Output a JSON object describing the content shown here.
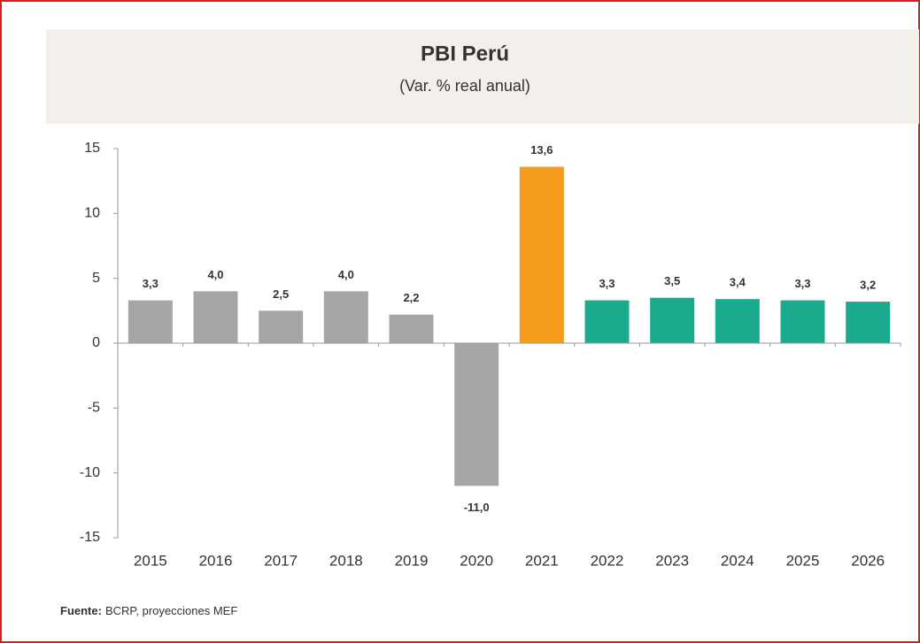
{
  "chart_data": {
    "type": "bar",
    "title": "PBI Perú",
    "subtitle": "(Var. % real anual)",
    "categories": [
      "2015",
      "2016",
      "2017",
      "2018",
      "2019",
      "2020",
      "2021",
      "2022",
      "2023",
      "2024",
      "2025",
      "2026"
    ],
    "values": [
      3.3,
      4.0,
      2.5,
      4.0,
      2.2,
      -11.0,
      13.6,
      3.3,
      3.5,
      3.4,
      3.3,
      3.2
    ],
    "value_labels": [
      "3,3",
      "4,0",
      "2,5",
      "4,0",
      "2,2",
      "-11,0",
      "13,6",
      "3,3",
      "3,5",
      "3,4",
      "3,3",
      "3,2"
    ],
    "colors": [
      "#a6a6a6",
      "#a6a6a6",
      "#a6a6a6",
      "#a6a6a6",
      "#a6a6a6",
      "#a6a6a6",
      "#f39c1e",
      "#1aab8f",
      "#1aab8f",
      "#1aab8f",
      "#1aab8f",
      "#1aab8f"
    ],
    "ylim": [
      -15,
      15
    ],
    "yticks": [
      -15,
      -10,
      -5,
      0,
      5,
      10,
      15
    ],
    "grid": false,
    "source": {
      "label": "Fuente:",
      "text": "BCRP, proyecciones MEF"
    }
  }
}
